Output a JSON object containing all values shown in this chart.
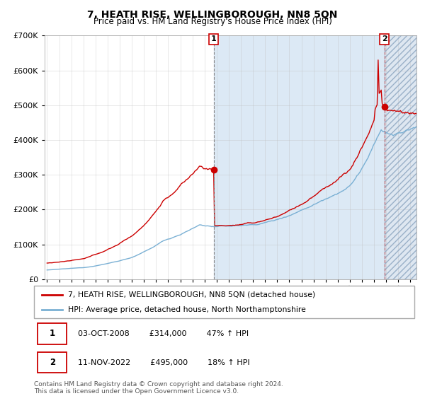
{
  "title": "7, HEATH RISE, WELLINGBOROUGH, NN8 5QN",
  "subtitle": "Price paid vs. HM Land Registry's House Price Index (HPI)",
  "legend_entry1": "7, HEATH RISE, WELLINGBOROUGH, NN8 5QN (detached house)",
  "legend_entry2": "HPI: Average price, detached house, North Northamptonshire",
  "annotation1_text": "03-OCT-2008        £314,000        47% ↑ HPI",
  "annotation2_text": "11-NOV-2022        £495,000        18% ↑ HPI",
  "footer": "Contains HM Land Registry data © Crown copyright and database right 2024.\nThis data is licensed under the Open Government Licence v3.0.",
  "red_color": "#cc0000",
  "blue_color": "#7ab0d4",
  "bg_color": "#dce9f5",
  "grid_color": "#bbbbbb",
  "sale1_x": 2008.75,
  "sale1_y": 314000,
  "sale2_x": 2022.85,
  "sale2_y": 495000,
  "ylim": [
    0,
    700000
  ],
  "xlim_start": 1994.8,
  "xlim_end": 2025.5
}
